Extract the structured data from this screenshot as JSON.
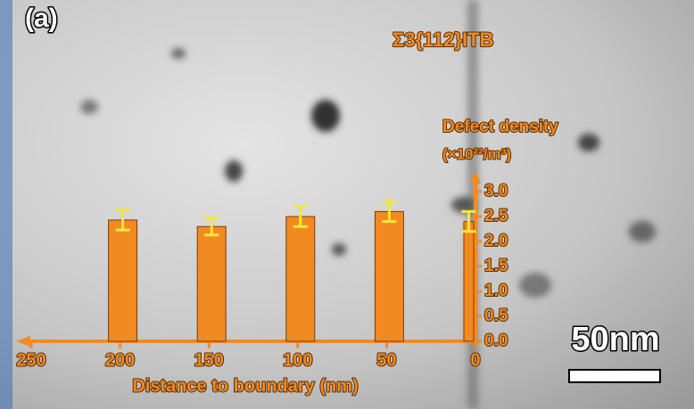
{
  "chart_data": {
    "type": "bar",
    "panel_label": "(a)",
    "annotation": "Σ3{112}ITB",
    "ylabel": [
      "Defect density",
      "(×10²²/m³)"
    ],
    "xlabel": "Distance to boundary (nm)",
    "scale_bar_label": "50nm",
    "x": [
      200,
      150,
      100,
      50,
      0
    ],
    "values": [
      2.43,
      2.3,
      2.5,
      2.6,
      2.4
    ],
    "errors": [
      0.2,
      0.17,
      0.2,
      0.2,
      0.2
    ],
    "color": "#f28a22",
    "xlim": [
      250,
      0
    ],
    "xticks": [
      250,
      200,
      150,
      100,
      50,
      0
    ],
    "ylim": [
      0,
      3
    ],
    "yticks": [
      {
        "value": 0,
        "label": "0.0"
      },
      0.5,
      {
        "value": 1,
        "label": "1.0"
      },
      1.5,
      {
        "value": 2,
        "label": "2.0"
      },
      2.5,
      {
        "value": 3,
        "label": "3.0"
      }
    ]
  }
}
